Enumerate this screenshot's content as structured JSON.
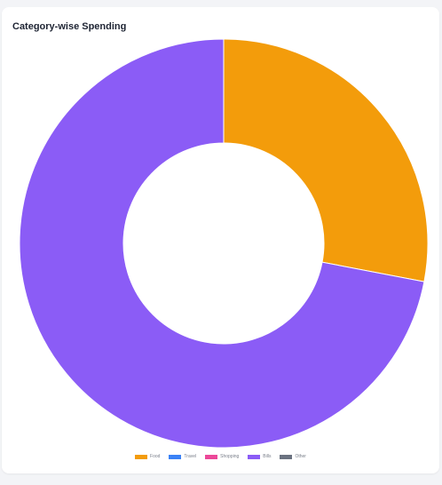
{
  "card": {
    "title": "Category-wise Spending"
  },
  "chart_data": {
    "type": "pie",
    "title": "Category-wise Spending",
    "donut": true,
    "categories": [
      "Food",
      "Travel",
      "Shopping",
      "Bills",
      "Other"
    ],
    "values": [
      28,
      0,
      0,
      72,
      0
    ],
    "colors": [
      "#f39c0b",
      "#3b82f6",
      "#ec4899",
      "#8b5cf6",
      "#6b7280"
    ],
    "legend_position": "bottom"
  }
}
